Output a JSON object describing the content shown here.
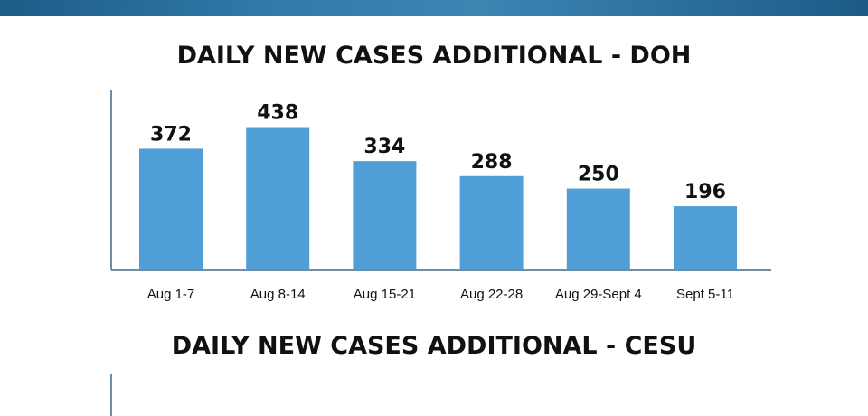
{
  "chart_data": [
    {
      "type": "bar",
      "title": "DAILY NEW CASES ADDITIONAL - DOH",
      "categories": [
        "Aug 1-7",
        "Aug 8-14",
        "Aug 15-21",
        "Aug 22-28",
        "Aug 29-Sept 4",
        "Sept 5-11"
      ],
      "values": [
        372,
        438,
        334,
        288,
        250,
        196
      ],
      "data_labels": [
        "372",
        "438",
        "334",
        "288",
        "250",
        "196"
      ],
      "xlabel": "",
      "ylabel": "",
      "ylim": [
        0,
        550
      ],
      "grid": false,
      "bar_color": "#4f9ed5"
    },
    {
      "type": "bar",
      "title": "DAILY NEW CASES ADDITIONAL - CESU",
      "categories": [],
      "values": []
    }
  ],
  "colors": {
    "bar": "#4f9ed5",
    "axis": "#6c8ea8",
    "banner": "#2f7aa8",
    "text": "#111111"
  }
}
